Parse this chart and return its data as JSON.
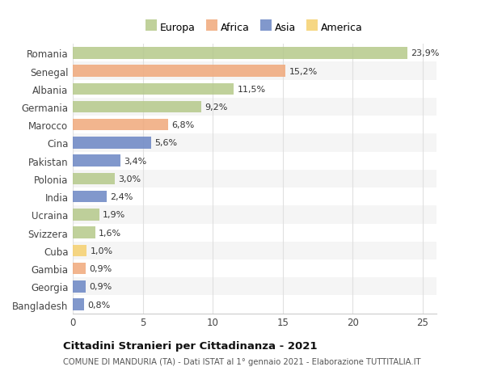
{
  "countries": [
    "Romania",
    "Senegal",
    "Albania",
    "Germania",
    "Marocco",
    "Cina",
    "Pakistan",
    "Polonia",
    "India",
    "Ucraina",
    "Svizzera",
    "Cuba",
    "Gambia",
    "Georgia",
    "Bangladesh"
  ],
  "values": [
    23.9,
    15.2,
    11.5,
    9.2,
    6.8,
    5.6,
    3.4,
    3.0,
    2.4,
    1.9,
    1.6,
    1.0,
    0.9,
    0.9,
    0.8
  ],
  "labels": [
    "23,9%",
    "15,2%",
    "11,5%",
    "9,2%",
    "6,8%",
    "5,6%",
    "3,4%",
    "3,0%",
    "2,4%",
    "1,9%",
    "1,6%",
    "1,0%",
    "0,9%",
    "0,9%",
    "0,8%"
  ],
  "continents": [
    "Europa",
    "Africa",
    "Europa",
    "Europa",
    "Africa",
    "Asia",
    "Asia",
    "Europa",
    "Asia",
    "Europa",
    "Europa",
    "America",
    "Africa",
    "Asia",
    "Asia"
  ],
  "colors": {
    "Europa": "#b5c98a",
    "Africa": "#f0a87a",
    "Asia": "#6b86c4",
    "America": "#f5d06e"
  },
  "legend_order": [
    "Europa",
    "Africa",
    "Asia",
    "America"
  ],
  "title": "Cittadini Stranieri per Cittadinanza - 2021",
  "subtitle": "COMUNE DI MANDURIA (TA) - Dati ISTAT al 1° gennaio 2021 - Elaborazione TUTTITALIA.IT",
  "xlim": [
    0,
    26
  ],
  "xticks": [
    0,
    5,
    10,
    15,
    20,
    25
  ],
  "bg_color": "#ffffff",
  "grid_color": "#e0e0e0",
  "bar_alpha": 0.85,
  "row_alt_color": "#f5f5f5"
}
